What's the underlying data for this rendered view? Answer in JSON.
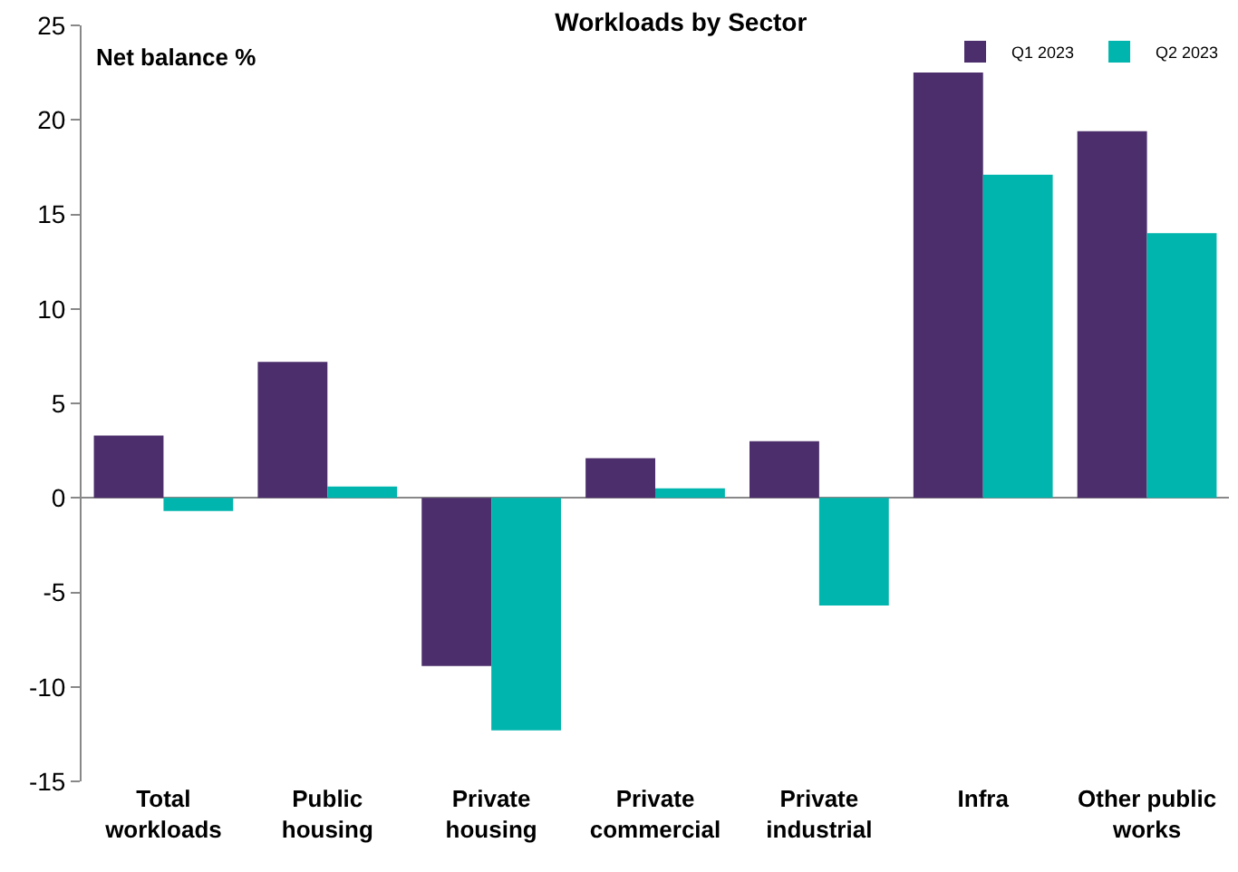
{
  "chart_data": {
    "type": "bar",
    "title": "Workloads by Sector",
    "ylabel": "Net balance %",
    "categories": [
      "Total\nworkloads",
      "Public\nhousing",
      "Private\nhousing",
      "Private\ncommercial",
      "Private\nindustrial",
      "Infra",
      "Other public\nworks"
    ],
    "series": [
      {
        "name": "Q1 2023",
        "color": "#4b2e6b",
        "values": [
          3.3,
          7.2,
          -8.9,
          2.1,
          3.0,
          22.5,
          19.4
        ]
      },
      {
        "name": "Q2 2023",
        "color": "#00b5ad",
        "values": [
          -0.7,
          0.6,
          -12.3,
          0.5,
          -5.7,
          17.1,
          14.0
        ]
      }
    ],
    "ylim": [
      -15,
      25
    ],
    "yticks": [
      -15,
      -10,
      -5,
      0,
      5,
      10,
      15,
      20,
      25
    ],
    "legend": "top right"
  }
}
